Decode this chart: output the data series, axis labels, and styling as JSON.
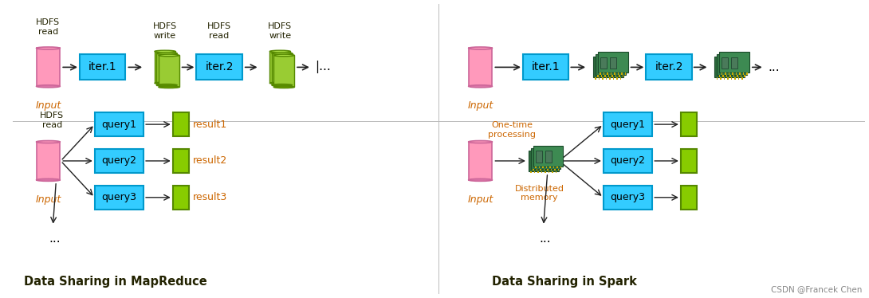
{
  "bg_color": "#ffffff",
  "title_left": "Data Sharing in MapReduce",
  "title_right": "Data Sharing in Spark",
  "pink_color": "#FF99BB",
  "pink_edge": "#CC6699",
  "pink_dark": "#DD77AA",
  "cyan_color": "#33CCFF",
  "cyan_edge": "#0099CC",
  "green_color": "#88CC00",
  "green_edge": "#558800",
  "green_dark": "#669900",
  "green_body": "#99CC33",
  "green_body2": "#AADD44",
  "text_orange": "#CC6600",
  "text_dark": "#222200",
  "arrow_color": "#222222",
  "watermark": "CSDN @Francek Chen",
  "watermark_color": "#888888"
}
